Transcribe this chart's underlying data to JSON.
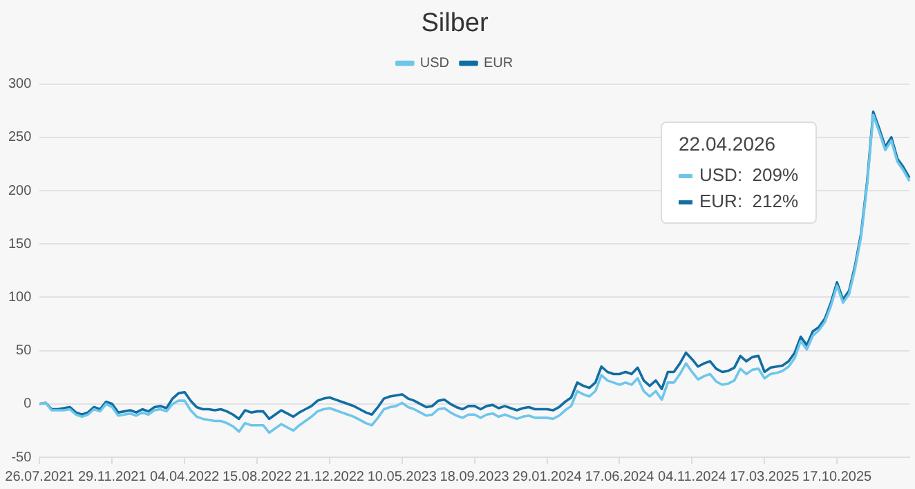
{
  "chart_data": {
    "type": "line",
    "title": "Silber",
    "categories": [
      "26.07.2021",
      null,
      null,
      null,
      null,
      null,
      null,
      null,
      null,
      null,
      null,
      null,
      "29.11.2021",
      null,
      null,
      null,
      null,
      null,
      null,
      null,
      null,
      null,
      null,
      null,
      "04.04.2022",
      null,
      null,
      null,
      null,
      null,
      null,
      null,
      null,
      null,
      null,
      null,
      "15.08.2022",
      null,
      null,
      null,
      null,
      null,
      null,
      null,
      null,
      null,
      null,
      null,
      "21.12.2022",
      null,
      null,
      null,
      null,
      null,
      null,
      null,
      null,
      null,
      null,
      null,
      "10.05.2023",
      null,
      null,
      null,
      null,
      null,
      null,
      null,
      null,
      null,
      null,
      null,
      "18.09.2023",
      null,
      null,
      null,
      null,
      null,
      null,
      null,
      null,
      null,
      null,
      null,
      "29.01.2024",
      null,
      null,
      null,
      null,
      null,
      null,
      null,
      null,
      null,
      null,
      null,
      "17.06.2024",
      null,
      null,
      null,
      null,
      null,
      null,
      null,
      null,
      null,
      null,
      null,
      "04.11.2024",
      null,
      null,
      null,
      null,
      null,
      null,
      null,
      null,
      null,
      null,
      null,
      "17.03.2025",
      null,
      null,
      null,
      null,
      null,
      null,
      null,
      null,
      null,
      null,
      null,
      "17.10.2025",
      null,
      null,
      null,
      null,
      null,
      null,
      null,
      null,
      null,
      null,
      null,
      null
    ],
    "series": [
      {
        "name": "USD",
        "color": "#6ec6ea",
        "values": [
          0,
          1,
          -6,
          -6,
          -6,
          -5,
          -10,
          -12,
          -10,
          -5,
          -7,
          0,
          -3,
          -11,
          -10,
          -9,
          -11,
          -8,
          -10,
          -6,
          -5,
          -7,
          0,
          3,
          3,
          -6,
          -12,
          -14,
          -15,
          -16,
          -16,
          -18,
          -21,
          -26,
          -18,
          -20,
          -20,
          -20,
          -27,
          -23,
          -19,
          -22,
          -25,
          -20,
          -16,
          -12,
          -7,
          -5,
          -4,
          -6,
          -8,
          -10,
          -12,
          -15,
          -18,
          -20,
          -13,
          -5,
          -3,
          -2,
          1,
          -3,
          -5,
          -8,
          -11,
          -10,
          -5,
          -4,
          -8,
          -11,
          -13,
          -10,
          -10,
          -13,
          -10,
          -9,
          -12,
          -10,
          -12,
          -14,
          -12,
          -11,
          -13,
          -13,
          -13,
          -14,
          -11,
          -6,
          -2,
          12,
          9,
          7,
          12,
          27,
          22,
          20,
          18,
          20,
          18,
          24,
          12,
          7,
          12,
          4,
          20,
          20,
          28,
          38,
          30,
          23,
          26,
          28,
          21,
          18,
          19,
          22,
          33,
          28,
          32,
          33,
          24,
          28,
          29,
          31,
          35,
          43,
          59,
          51,
          64,
          69,
          77,
          92,
          111,
          95,
          103,
          127,
          157,
          206,
          271,
          255,
          238,
          247,
          227,
          219,
          209
        ]
      },
      {
        "name": "EUR",
        "color": "#116ea3",
        "values": [
          0,
          1,
          -5,
          -5,
          -4,
          -3,
          -8,
          -10,
          -8,
          -3,
          -5,
          2,
          0,
          -8,
          -7,
          -6,
          -8,
          -5,
          -7,
          -3,
          -2,
          -4,
          5,
          10,
          11,
          3,
          -3,
          -5,
          -5,
          -6,
          -5,
          -7,
          -10,
          -14,
          -6,
          -8,
          -7,
          -7,
          -14,
          -10,
          -6,
          -9,
          -12,
          -8,
          -5,
          -2,
          3,
          5,
          6,
          4,
          2,
          0,
          -2,
          -5,
          -8,
          -10,
          -3,
          5,
          7,
          8,
          9,
          5,
          3,
          0,
          -3,
          -2,
          3,
          4,
          0,
          -3,
          -5,
          -2,
          -2,
          -5,
          -2,
          -1,
          -4,
          -2,
          -4,
          -6,
          -4,
          -3,
          -5,
          -5,
          -5,
          -6,
          -3,
          2,
          6,
          20,
          17,
          15,
          20,
          35,
          30,
          28,
          28,
          30,
          28,
          34,
          22,
          17,
          22,
          14,
          30,
          30,
          38,
          48,
          42,
          35,
          38,
          40,
          33,
          30,
          31,
          34,
          45,
          40,
          44,
          45,
          30,
          34,
          35,
          36,
          40,
          48,
          63,
          55,
          68,
          72,
          80,
          95,
          114,
          98,
          106,
          130,
          160,
          209,
          274,
          258,
          241,
          250,
          230,
          222,
          212
        ]
      }
    ],
    "ylim": [
      -50,
      300
    ],
    "yticks": [
      -50,
      0,
      50,
      100,
      150,
      200,
      250,
      300
    ],
    "grid": "y",
    "legend": "top",
    "marker": "none",
    "line_style": "solid",
    "annotations": [
      "22.04.2026",
      "USD:  209%",
      "EUR:  212%"
    ]
  }
}
